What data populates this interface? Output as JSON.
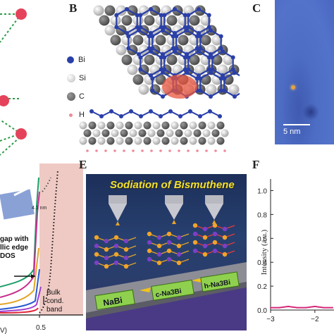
{
  "panels": {
    "B": {
      "letter": "B",
      "legend": [
        {
          "label": "Bi",
          "color": "#2a3fa8"
        },
        {
          "label": "Si",
          "color": "#d9d9d9"
        },
        {
          "label": "C",
          "color": "#6d6d6d"
        },
        {
          "label": "H",
          "color": "#f08a9c"
        }
      ]
    },
    "C": {
      "letter": "C",
      "scale_bar": "5 nm"
    },
    "E": {
      "letter": "E",
      "banner": "Sodiation of Bismuthene",
      "phases": [
        "NaBi",
        "c-Na3Bi",
        "h-Na3Bi"
      ]
    },
    "F": {
      "letter": "F",
      "ylabel": "Intensity (a.u.)",
      "yticks": [
        "1.0",
        "0.8",
        "0.6",
        "0.4",
        "0.2",
        "0.0"
      ],
      "xticks": [
        "-3",
        "-2"
      ]
    },
    "D": {
      "labels": [
        "gap with",
        "llic edge",
        "DOS",
        "Bulk",
        "cond.",
        "band"
      ],
      "inset": "4.1 nm",
      "xunit": "V)",
      "ytick": "0.5"
    }
  },
  "chart_data": {
    "type": "line",
    "ylabel": "Intensity (a.u.)",
    "ylim": [
      0,
      1.05
    ],
    "xlim": [
      -3,
      -1.6
    ],
    "series": [
      {
        "values": [
          0.02,
          0.02,
          0.03,
          0.02,
          0.02,
          0.03,
          0.02,
          0.02
        ]
      }
    ]
  }
}
